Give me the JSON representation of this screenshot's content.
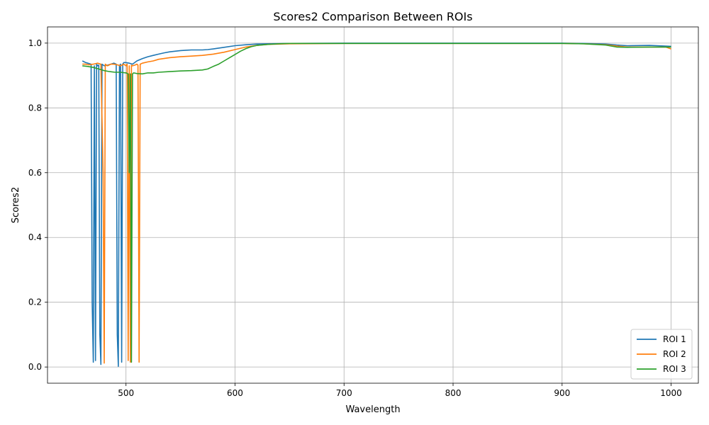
{
  "chart_data": {
    "type": "line",
    "title": "Scores2 Comparison Between ROIs",
    "xlabel": "Wavelength",
    "ylabel": "Scores2",
    "xlim": [
      428,
      1025
    ],
    "ylim": [
      -0.05,
      1.05
    ],
    "xticks": [
      500,
      600,
      700,
      800,
      900,
      1000
    ],
    "yticks": [
      0.0,
      0.2,
      0.4,
      0.6,
      0.8,
      1.0
    ],
    "ytick_labels": [
      "0.0",
      "0.2",
      "0.4",
      "0.6",
      "0.8",
      "1.0"
    ],
    "grid": true,
    "legend_position": "bottom-right",
    "series": [
      {
        "name": "ROI 1",
        "color": "#1f77b4",
        "x": [
          460,
          463,
          466,
          468,
          469,
          470,
          471,
          472,
          473,
          474,
          475,
          476,
          477,
          478,
          480,
          483,
          486,
          489,
          491,
          492,
          493,
          494,
          495,
          496,
          497,
          498,
          500,
          503,
          506,
          510,
          515,
          520,
          525,
          530,
          535,
          540,
          545,
          550,
          555,
          560,
          565,
          570,
          575,
          580,
          590,
          600,
          610,
          620,
          630,
          650,
          700,
          800,
          900,
          920,
          940,
          950,
          960,
          980,
          995,
          1000
        ],
        "y": [
          0.945,
          0.94,
          0.937,
          0.935,
          0.2,
          0.015,
          0.93,
          0.02,
          0.935,
          0.93,
          0.932,
          0.1,
          0.008,
          0.935,
          0.93,
          0.932,
          0.935,
          0.938,
          0.935,
          0.1,
          0.002,
          0.93,
          0.935,
          0.015,
          0.935,
          0.94,
          0.94,
          0.938,
          0.935,
          0.945,
          0.952,
          0.958,
          0.962,
          0.966,
          0.97,
          0.973,
          0.975,
          0.977,
          0.978,
          0.979,
          0.979,
          0.979,
          0.98,
          0.982,
          0.987,
          0.992,
          0.995,
          0.997,
          0.998,
          0.999,
          1.0,
          1.0,
          1.0,
          0.999,
          0.997,
          0.994,
          0.992,
          0.993,
          0.991,
          0.99
        ]
      },
      {
        "name": "ROI 2",
        "color": "#ff7f0e",
        "x": [
          460,
          463,
          466,
          470,
          474,
          477,
          479,
          480,
          481,
          483,
          486,
          489,
          492,
          495,
          498,
          500,
          501,
          502,
          503,
          504,
          505,
          506,
          508,
          510,
          511,
          512,
          513,
          515,
          520,
          525,
          530,
          540,
          550,
          560,
          570,
          580,
          590,
          600,
          610,
          620,
          630,
          650,
          700,
          800,
          900,
          920,
          940,
          950,
          960,
          980,
          995,
          1000
        ],
        "y": [
          0.935,
          0.935,
          0.933,
          0.935,
          0.938,
          0.935,
          0.6,
          0.012,
          0.935,
          0.93,
          0.935,
          0.935,
          0.933,
          0.93,
          0.935,
          0.93,
          0.935,
          0.02,
          0.93,
          0.015,
          0.932,
          0.93,
          0.932,
          0.935,
          0.932,
          0.015,
          0.935,
          0.938,
          0.942,
          0.945,
          0.95,
          0.955,
          0.958,
          0.96,
          0.962,
          0.966,
          0.972,
          0.98,
          0.988,
          0.993,
          0.996,
          0.998,
          0.999,
          0.999,
          0.999,
          0.998,
          0.995,
          0.991,
          0.988,
          0.988,
          0.988,
          0.982
        ]
      },
      {
        "name": "ROI 3",
        "color": "#2ca02c",
        "x": [
          460,
          465,
          470,
          475,
          480,
          485,
          490,
          495,
          500,
          502,
          503,
          504,
          505,
          506,
          507,
          510,
          515,
          520,
          525,
          530,
          540,
          550,
          560,
          570,
          575,
          580,
          585,
          590,
          595,
          600,
          605,
          610,
          615,
          620,
          630,
          640,
          650,
          700,
          800,
          900,
          920,
          940,
          950,
          960,
          980,
          995,
          1000
        ],
        "y": [
          0.93,
          0.928,
          0.925,
          0.92,
          0.915,
          0.912,
          0.91,
          0.91,
          0.908,
          0.905,
          0.6,
          0.905,
          0.015,
          0.905,
          0.908,
          0.906,
          0.905,
          0.908,
          0.908,
          0.91,
          0.912,
          0.914,
          0.915,
          0.917,
          0.92,
          0.928,
          0.935,
          0.945,
          0.955,
          0.965,
          0.975,
          0.983,
          0.989,
          0.993,
          0.996,
          0.998,
          0.999,
          0.999,
          0.999,
          0.999,
          0.998,
          0.994,
          0.988,
          0.987,
          0.988,
          0.988,
          0.988
        ]
      }
    ]
  }
}
